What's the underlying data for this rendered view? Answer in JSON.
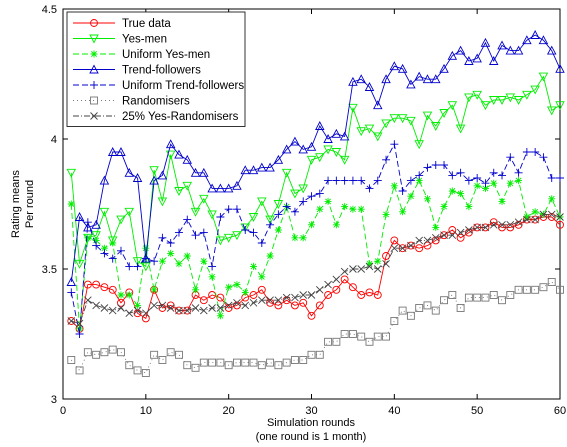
{
  "chart_data": {
    "type": "line",
    "xlabel": [
      "Simulation rounds",
      "(one round is 1 month)"
    ],
    "ylabel": [
      "Rating means",
      "Per round"
    ],
    "xlim": [
      0,
      60
    ],
    "ylim": [
      3,
      4.5
    ],
    "xticks": [
      "0",
      "10",
      "20",
      "30",
      "40",
      "50",
      "60"
    ],
    "yticks": [
      "3",
      "3.5",
      "4",
      "4.5"
    ],
    "legend_position": "top-left",
    "grid": false,
    "x": [
      1,
      2,
      3,
      4,
      5,
      6,
      7,
      8,
      9,
      10,
      11,
      12,
      13,
      14,
      15,
      16,
      17,
      18,
      19,
      20,
      21,
      22,
      23,
      24,
      25,
      26,
      27,
      28,
      29,
      30,
      31,
      32,
      33,
      34,
      35,
      36,
      37,
      38,
      39,
      40,
      41,
      42,
      43,
      44,
      45,
      46,
      47,
      48,
      49,
      50,
      51,
      52,
      53,
      54,
      55,
      56,
      57,
      58,
      59,
      60
    ],
    "series": [
      {
        "name": "True data",
        "color": "#ff0000",
        "dash": "",
        "marker": "circle",
        "values": [
          3.3,
          3.27,
          3.44,
          3.44,
          3.43,
          3.42,
          3.37,
          3.41,
          3.33,
          3.31,
          3.42,
          3.35,
          3.36,
          3.34,
          3.34,
          3.4,
          3.38,
          3.4,
          3.39,
          3.35,
          3.36,
          3.39,
          3.4,
          3.42,
          3.37,
          3.36,
          3.38,
          3.36,
          3.37,
          3.32,
          3.36,
          3.4,
          3.42,
          3.46,
          3.43,
          3.4,
          3.41,
          3.4,
          3.55,
          3.61,
          3.58,
          3.59,
          3.58,
          3.59,
          3.61,
          3.63,
          3.65,
          3.62,
          3.64,
          3.66,
          3.66,
          3.68,
          3.66,
          3.66,
          3.67,
          3.69,
          3.69,
          3.7,
          3.7,
          3.67
        ]
      },
      {
        "name": "Yes-men",
        "color": "#00ee00",
        "dash": "",
        "marker": "tri-down",
        "values": [
          3.87,
          3.52,
          3.62,
          3.63,
          3.72,
          3.61,
          3.69,
          3.72,
          3.53,
          3.51,
          3.88,
          3.76,
          3.94,
          3.8,
          3.82,
          3.72,
          3.77,
          3.71,
          3.61,
          3.62,
          3.63,
          3.66,
          3.7,
          3.76,
          3.69,
          3.75,
          3.87,
          3.79,
          3.81,
          3.92,
          3.93,
          3.96,
          3.95,
          3.92,
          4.12,
          4.03,
          4.04,
          4.01,
          4.06,
          4.08,
          4.08,
          4.07,
          3.98,
          4.09,
          4.05,
          4.1,
          4.13,
          4.04,
          4.16,
          4.17,
          4.13,
          4.15,
          4.15,
          4.16,
          4.15,
          4.17,
          4.19,
          4.24,
          4.11,
          4.13
        ]
      },
      {
        "name": "Uniform Yes-men",
        "color": "#00ee00",
        "dash": "6,3",
        "marker": "star",
        "values": [
          3.75,
          3.27,
          3.62,
          3.61,
          3.58,
          3.6,
          3.4,
          3.4,
          3.36,
          3.58,
          3.42,
          3.53,
          3.56,
          3.52,
          3.55,
          3.42,
          3.53,
          3.47,
          3.32,
          3.43,
          3.44,
          3.41,
          3.51,
          3.47,
          3.55,
          3.65,
          3.74,
          3.62,
          3.62,
          3.67,
          3.73,
          3.76,
          3.67,
          3.74,
          3.73,
          3.73,
          3.52,
          3.53,
          3.71,
          3.82,
          3.72,
          3.78,
          3.84,
          3.77,
          3.66,
          3.74,
          3.8,
          3.79,
          3.74,
          3.82,
          3.81,
          3.83,
          3.76,
          3.83,
          3.84,
          3.7,
          3.72,
          3.71,
          3.77,
          3.7
        ]
      },
      {
        "name": "Trend-followers",
        "color": "#0000cc",
        "dash": "",
        "marker": "tri-up",
        "values": [
          3.45,
          3.7,
          3.66,
          3.67,
          3.84,
          3.95,
          3.95,
          3.87,
          3.85,
          3.54,
          3.84,
          3.86,
          3.98,
          3.94,
          3.92,
          3.87,
          3.87,
          3.81,
          3.81,
          3.81,
          3.82,
          3.88,
          3.88,
          3.89,
          3.89,
          3.92,
          3.96,
          3.99,
          3.96,
          3.97,
          4.05,
          4.0,
          4.02,
          4.01,
          4.22,
          4.23,
          4.2,
          4.13,
          4.23,
          4.28,
          4.27,
          4.21,
          4.24,
          4.23,
          4.23,
          4.27,
          4.32,
          4.34,
          4.3,
          4.31,
          4.37,
          4.3,
          4.36,
          4.34,
          4.34,
          4.38,
          4.4,
          4.38,
          4.34,
          4.27
        ]
      },
      {
        "name": "Uniform Trend-followers",
        "color": "#0000cc",
        "dash": "6,3",
        "marker": "plus",
        "values": [
          3.41,
          3.25,
          3.68,
          3.59,
          3.56,
          3.54,
          3.57,
          3.51,
          3.51,
          3.54,
          3.53,
          3.62,
          3.6,
          3.64,
          3.69,
          3.63,
          3.64,
          3.51,
          3.7,
          3.73,
          3.73,
          3.65,
          3.64,
          3.6,
          3.67,
          3.71,
          3.74,
          3.72,
          3.76,
          3.78,
          3.79,
          3.84,
          3.84,
          3.84,
          3.84,
          3.84,
          3.81,
          3.84,
          3.92,
          3.98,
          3.8,
          3.84,
          3.86,
          3.89,
          3.9,
          3.9,
          3.86,
          3.87,
          3.84,
          3.85,
          3.83,
          3.87,
          3.86,
          3.93,
          3.87,
          3.95,
          3.95,
          3.93,
          3.85,
          3.85
        ]
      },
      {
        "name": "Randomisers",
        "color": "#777777",
        "dash": "1,3",
        "marker": "square",
        "values": [
          3.15,
          3.11,
          3.18,
          3.17,
          3.18,
          3.19,
          3.18,
          3.13,
          3.11,
          3.1,
          3.17,
          3.15,
          3.18,
          3.17,
          3.13,
          3.12,
          3.14,
          3.14,
          3.14,
          3.13,
          3.14,
          3.14,
          3.14,
          3.13,
          3.14,
          3.13,
          3.14,
          3.15,
          3.15,
          3.17,
          3.17,
          3.22,
          3.22,
          3.25,
          3.25,
          3.24,
          3.22,
          3.24,
          3.24,
          3.3,
          3.34,
          3.32,
          3.35,
          3.36,
          3.34,
          3.38,
          3.4,
          3.35,
          3.39,
          3.39,
          3.39,
          3.4,
          3.38,
          3.4,
          3.42,
          3.42,
          3.42,
          3.43,
          3.45,
          3.42
        ]
      },
      {
        "name": "25% Yes-Randomisers",
        "color": "#444444",
        "dash": "6,2,1,2",
        "marker": "x",
        "values": [
          3.3,
          3.29,
          3.38,
          3.36,
          3.35,
          3.34,
          3.35,
          3.33,
          3.34,
          3.33,
          3.36,
          3.36,
          3.35,
          3.34,
          3.34,
          3.35,
          3.34,
          3.35,
          3.35,
          3.36,
          3.37,
          3.36,
          3.37,
          3.38,
          3.38,
          3.38,
          3.39,
          3.39,
          3.4,
          3.4,
          3.42,
          3.44,
          3.46,
          3.49,
          3.5,
          3.5,
          3.51,
          3.5,
          3.52,
          3.58,
          3.58,
          3.59,
          3.61,
          3.61,
          3.62,
          3.63,
          3.63,
          3.64,
          3.65,
          3.66,
          3.66,
          3.67,
          3.67,
          3.67,
          3.68,
          3.69,
          3.69,
          3.71,
          3.71,
          3.7
        ]
      }
    ]
  }
}
